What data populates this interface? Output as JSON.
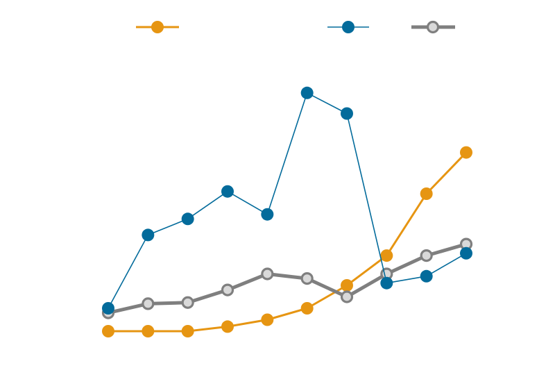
{
  "chart_data": {
    "type": "line",
    "title": "",
    "xlabel": "",
    "ylabel": "",
    "grid": false,
    "legend": "top",
    "x": [
      1,
      2,
      3,
      4,
      5,
      6,
      7,
      8,
      9,
      10
    ],
    "ylim": [
      0,
      100
    ],
    "series": [
      {
        "color": "#E69512",
        "marker": "filled",
        "values": [
          0,
          0,
          0,
          2,
          5,
          10,
          20,
          33,
          60,
          78
        ]
      },
      {
        "color": "#036B9B",
        "marker": "filled",
        "values": [
          10,
          42,
          49,
          61,
          51,
          104,
          95,
          21,
          24,
          34
        ]
      },
      {
        "color": "#7F7F7F",
        "marker": "hollow",
        "values": [
          8,
          12,
          12.5,
          18,
          25,
          23,
          15,
          25,
          33,
          38
        ]
      }
    ]
  }
}
